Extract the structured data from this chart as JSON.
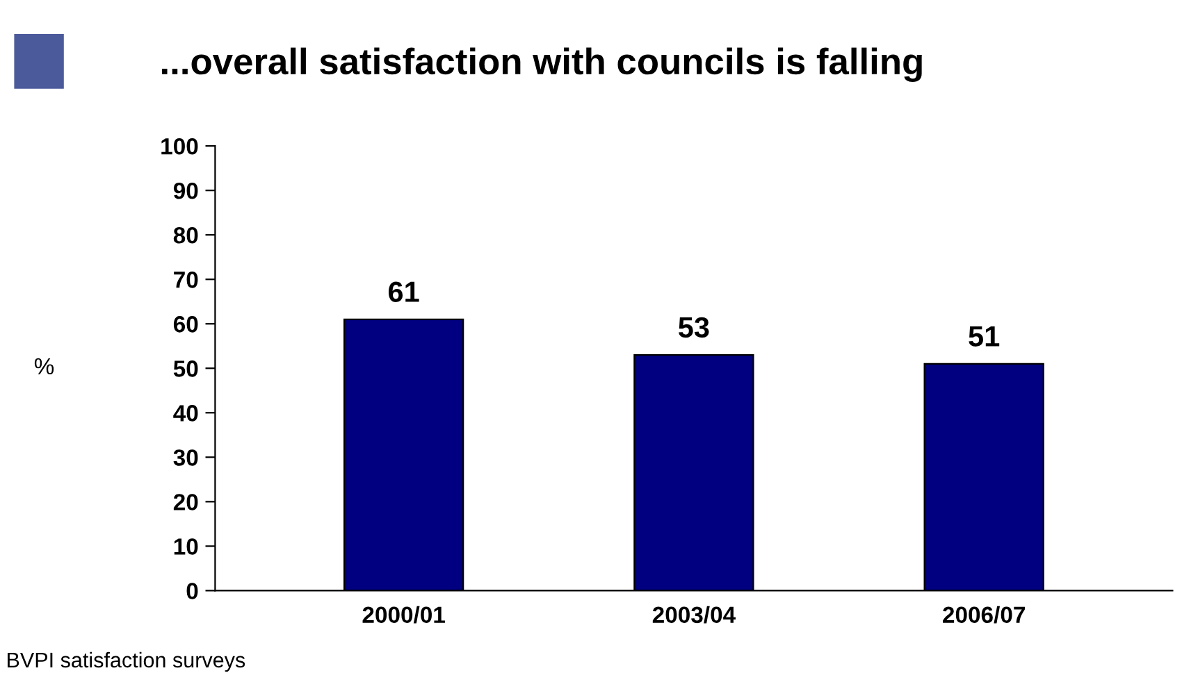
{
  "chart_data": {
    "type": "bar",
    "title": "...overall satisfaction with councils is falling",
    "ylabel": "%",
    "categories": [
      "2000/01",
      "2003/04",
      "2006/07"
    ],
    "values": [
      61,
      53,
      51
    ],
    "color": "#000080",
    "data_labels": true,
    "ylim": [
      0,
      100
    ],
    "yticks": [
      0,
      10,
      20,
      30,
      40,
      50,
      60,
      70,
      80,
      90,
      100
    ],
    "grid": false,
    "legend": false,
    "annotations": [
      "BVPI satisfaction surveys"
    ]
  }
}
